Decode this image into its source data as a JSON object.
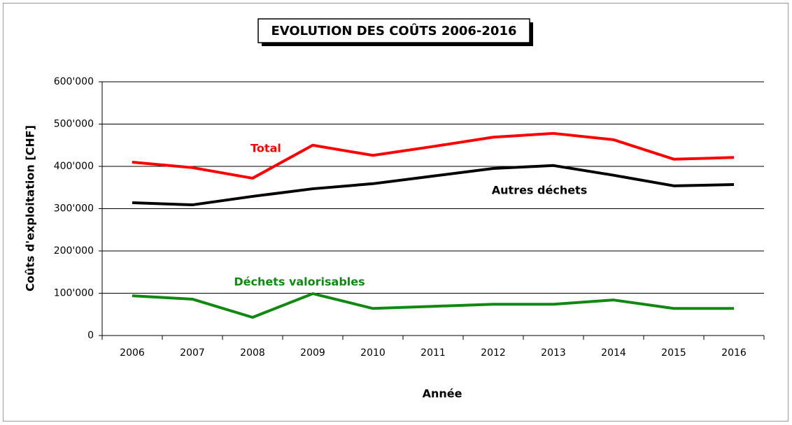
{
  "chart_data": {
    "type": "line",
    "title": "EVOLUTION DES COÛTS 2006-2016",
    "x_label": "Année",
    "y_label": "Coûts d'exploitation [CHF]",
    "categories": [
      "2006",
      "2007",
      "2008",
      "2009",
      "2010",
      "2011",
      "2012",
      "2013",
      "2014",
      "2015",
      "2016"
    ],
    "series": [
      {
        "name": "Total",
        "color": "#ff0000",
        "values": [
          410000,
          397000,
          372000,
          450000,
          426000,
          447000,
          469000,
          478000,
          463000,
          417000,
          421000
        ]
      },
      {
        "name": "Autres déchets",
        "color": "#000000",
        "values": [
          314000,
          309000,
          329000,
          347000,
          359000,
          377000,
          395000,
          402000,
          379000,
          354000,
          357000
        ]
      },
      {
        "name": "Déchets valorisables",
        "color": "#118811",
        "values": [
          94000,
          86000,
          43000,
          99000,
          64000,
          69000,
          74000,
          74000,
          84000,
          64000,
          64000
        ]
      }
    ],
    "ylim": [
      0,
      600000
    ],
    "yticks": [
      0,
      {
        "value": 100000,
        "label": "100'000"
      },
      {
        "value": 200000,
        "label": "200'000"
      },
      {
        "value": 300000,
        "label": "300'000"
      },
      {
        "value": 400000,
        "label": "400'000"
      },
      {
        "value": 500000,
        "label": "500'000"
      },
      {
        "value": 600000,
        "label": "600'000"
      }
    ],
    "grid": true
  }
}
